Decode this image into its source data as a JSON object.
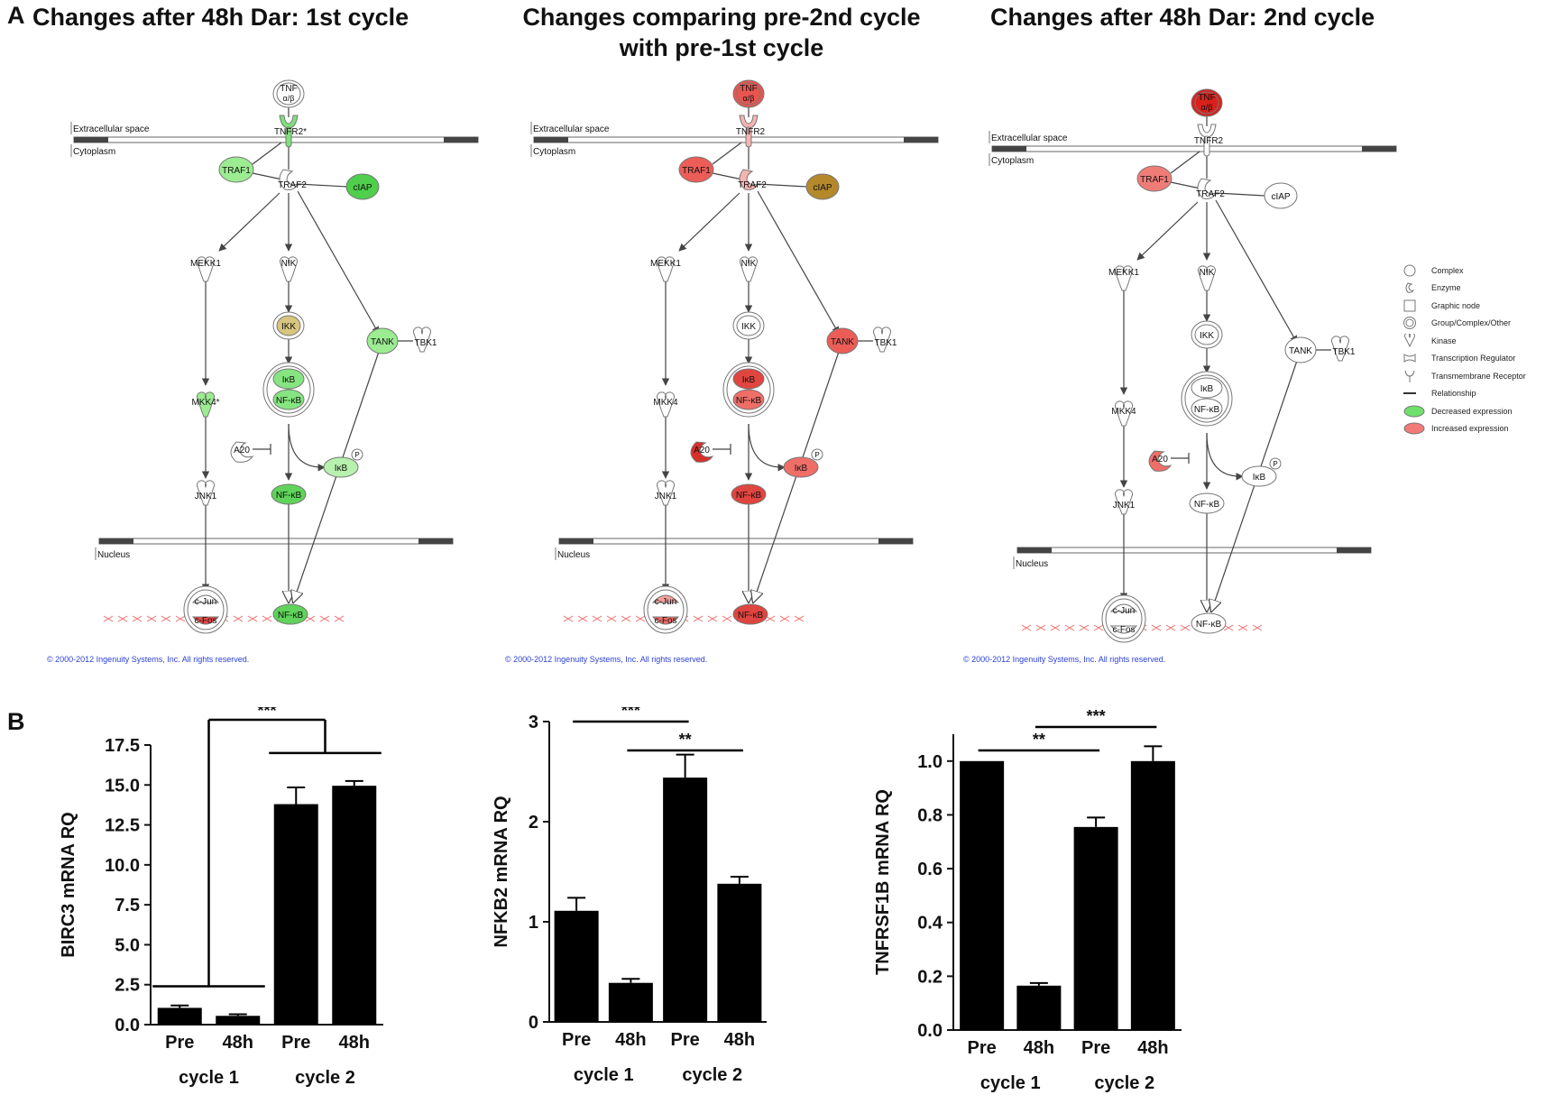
{
  "panel_a": {
    "letter": "A",
    "legend": [
      {
        "icon": "complex-icon",
        "label": "Complex"
      },
      {
        "icon": "enzyme-icon",
        "label": "Enzyme"
      },
      {
        "icon": "graphic-node-icon",
        "label": "Graphic node"
      },
      {
        "icon": "group-complex-icon",
        "label": "Group/Complex/Other"
      },
      {
        "icon": "kinase-icon",
        "label": "Kinase"
      },
      {
        "icon": "transcription-regulator-icon",
        "label": "Transcription Regulator"
      },
      {
        "icon": "transmembrane-receptor-icon",
        "label": "Transmembrane Receptor"
      },
      {
        "icon": "relationship-icon",
        "label": "Relationship"
      },
      {
        "icon": "decreased-expression-icon",
        "label": "Decreased expression",
        "color": "#6fe06a"
      },
      {
        "icon": "increased-expression-icon",
        "label": "Increased expression",
        "color": "#f27a78"
      }
    ],
    "diagrams": [
      {
        "title": "Changes after 48h Dar: 1st cycle",
        "copyright": "© 2000-2012 Ingenuity Systems, Inc. All rights reserved.",
        "compartments": {
          "extracellular": "Extracellular space",
          "cytoplasm": "Cytoplasm",
          "nucleus": "Nucleus"
        },
        "nodes": {
          "TNF": {
            "label1": "TNF",
            "label2": "α/β",
            "color": "#ffffff"
          },
          "TNFR2": {
            "label": "TNFR2*",
            "color": "#7de37a"
          },
          "TRAF1": {
            "label": "TRAF1",
            "color": "#9cec92"
          },
          "TRAF2": {
            "label": "TRAF2",
            "color": "#ffffff"
          },
          "cIAP": {
            "label": "cIAP",
            "color": "#4fcf4c"
          },
          "MEKK1": {
            "label": "MEKK1",
            "color": "#ffffff"
          },
          "NIK": {
            "label": "NIK",
            "color": "#ffffff"
          },
          "IKK": {
            "label": "IKK",
            "color": "#d8c57e"
          },
          "TANK": {
            "label": "TANK",
            "color": "#9cec92"
          },
          "TBK1": {
            "label": "TBK1",
            "color": "#ffffff"
          },
          "MKK4": {
            "label": "MKK4*",
            "color": "#9cec92"
          },
          "IkB_complex": {
            "label": "IκB",
            "color": "#86e580"
          },
          "NFkB_complex": {
            "label": "NF-κB",
            "color": "#86e580"
          },
          "A20": {
            "label": "A20",
            "color": "#ffffff"
          },
          "IkB_p": {
            "label": "IκB",
            "color": "#b6f1ad"
          },
          "P": {
            "label": "P"
          },
          "JNK1": {
            "label": "JNK1",
            "color": "#ffffff"
          },
          "NFkB": {
            "label": "NF-κB",
            "color": "#5fd35a"
          },
          "cJun": {
            "label": "c-Jun",
            "color": "#ffffff"
          },
          "cFos": {
            "label": "c-Fos",
            "color": "#e84a46"
          },
          "NFkB_nuc": {
            "label": "NF-κB",
            "color": "#5fd35a"
          }
        }
      },
      {
        "title": "Changes comparing pre-2nd cycle with pre-1st cycle",
        "title_line1": "Changes comparing pre-2nd cycle",
        "title_line2": "with pre-1st cycle",
        "copyright": "© 2000-2012 Ingenuity Systems, Inc. All rights reserved.",
        "compartments": {
          "extracellular": "Extracellular space",
          "cytoplasm": "Cytoplasm",
          "nucleus": "Nucleus"
        },
        "nodes": {
          "TNF": {
            "label1": "TNF",
            "label2": "α/β",
            "color": "#e8554f"
          },
          "TNFR2": {
            "label": "TNFR2",
            "color": "#f6b5b0"
          },
          "TRAF1": {
            "label": "TRAF1",
            "color": "#ec5d57"
          },
          "TRAF2": {
            "label": "TRAF2",
            "color": "#f6b5b0"
          },
          "cIAP": {
            "label": "cIAP",
            "color": "#b5882c"
          },
          "MEKK1": {
            "label": "MEKK1",
            "color": "#ffffff"
          },
          "NIK": {
            "label": "NIK",
            "color": "#ffffff"
          },
          "IKK": {
            "label": "IKK",
            "color": "#ffffff"
          },
          "TANK": {
            "label": "TANK",
            "color": "#ec5d57"
          },
          "TBK1": {
            "label": "TBK1",
            "color": "#ffffff"
          },
          "MKK4": {
            "label": "MKK4",
            "color": "#ffffff"
          },
          "IkB_complex": {
            "label": "IκB",
            "color": "#e0453f"
          },
          "NFkB_complex": {
            "label": "NF-κB",
            "color": "#ef6e68"
          },
          "A20": {
            "label": "A20",
            "color": "#d92f2a"
          },
          "IkB_p": {
            "label": "IκB",
            "color": "#ef6e68"
          },
          "P": {
            "label": "P"
          },
          "JNK1": {
            "label": "JNK1",
            "color": "#ffffff"
          },
          "NFkB": {
            "label": "NF-κB",
            "color": "#e0453f"
          },
          "cJun": {
            "label": "c-Jun",
            "color": "#f3a09b"
          },
          "cFos": {
            "label": "c-Fos",
            "color": "#f06e69"
          },
          "NFkB_nuc": {
            "label": "NF-κB",
            "color": "#e0453f"
          }
        }
      },
      {
        "title": "Changes after 48h Dar: 2nd cycle",
        "copyright": "© 2000-2012 Ingenuity Systems, Inc. All rights reserved.",
        "compartments": {
          "extracellular": "Extracellular space",
          "cytoplasm": "Cytoplasm",
          "nucleus": "Nucleus"
        },
        "nodes": {
          "TNF": {
            "label1": "TNF",
            "label2": "α/β",
            "color": "#d8211c"
          },
          "TNFR2": {
            "label": "TNFR2",
            "color": "#ffffff"
          },
          "TRAF1": {
            "label": "TRAF1",
            "color": "#f07c77"
          },
          "TRAF2": {
            "label": "TRAF2",
            "color": "#ffffff"
          },
          "cIAP": {
            "label": "cIAP",
            "color": "#ffffff"
          },
          "MEKK1": {
            "label": "MEKK1",
            "color": "#ffffff"
          },
          "NIK": {
            "label": "NIK",
            "color": "#ffffff"
          },
          "IKK": {
            "label": "IKK",
            "color": "#ffffff"
          },
          "TANK": {
            "label": "TANK",
            "color": "#ffffff"
          },
          "TBK1": {
            "label": "TBK1",
            "color": "#ffffff"
          },
          "MKK4": {
            "label": "MKK4",
            "color": "#ffffff"
          },
          "IkB_complex": {
            "label": "IκB",
            "color": "#ffffff"
          },
          "NFkB_complex": {
            "label": "NF-κB",
            "color": "#ffffff"
          },
          "A20": {
            "label": "A20",
            "color": "#ef6e68"
          },
          "IkB_p": {
            "label": "IκB",
            "color": "#ffffff"
          },
          "P": {
            "label": "P"
          },
          "JNK1": {
            "label": "JNK1",
            "color": "#ffffff"
          },
          "NFkB": {
            "label": "NF-κB",
            "color": "#ffffff"
          },
          "cJun": {
            "label": "c-Jun",
            "color": "#ffffff"
          },
          "cFos": {
            "label": "c-Fos",
            "color": "#ffffff"
          },
          "NFkB_nuc": {
            "label": "NF-κB",
            "color": "#ffffff"
          }
        }
      }
    ]
  },
  "panel_b": {
    "letter": "B",
    "cycle_labels": [
      "cycle 1",
      "cycle 2"
    ]
  },
  "chart_data": [
    {
      "type": "bar",
      "title": "",
      "xlabel": "",
      "ylabel": "BIRC3 mRNA RQ",
      "categories": [
        "Pre",
        "48h",
        "Pre",
        "48h"
      ],
      "groups": [
        "cycle 1",
        "cycle 2"
      ],
      "values": [
        1.05,
        0.55,
        13.8,
        14.95
      ],
      "errors": [
        0.15,
        0.1,
        1.05,
        0.3
      ],
      "ylim": [
        0,
        17.5
      ],
      "yticks": [
        0.0,
        2.5,
        5.0,
        7.5,
        10.0,
        12.5,
        15.0,
        17.5
      ],
      "ytick_labels": [
        "0.0",
        "2.5",
        "5.0",
        "7.5",
        "10.0",
        "12.5",
        "15.0",
        "17.5"
      ],
      "significance": [
        {
          "label": "***",
          "between": "cycle 1 vs cycle 2"
        }
      ]
    },
    {
      "type": "bar",
      "title": "",
      "xlabel": "",
      "ylabel": "NFKB2 mRNA RQ",
      "categories": [
        "Pre",
        "48h",
        "Pre",
        "48h"
      ],
      "groups": [
        "cycle 1",
        "cycle 2"
      ],
      "values": [
        1.11,
        0.39,
        2.44,
        1.38
      ],
      "errors": [
        0.13,
        0.04,
        0.23,
        0.07
      ],
      "ylim": [
        0,
        3
      ],
      "yticks": [
        0,
        1,
        2,
        3
      ],
      "ytick_labels": [
        "0",
        "1",
        "2",
        "3"
      ],
      "significance": [
        {
          "label": "***",
          "from": 0,
          "to": 2
        },
        {
          "label": "**",
          "from": 1,
          "to": 3
        }
      ]
    },
    {
      "type": "bar",
      "title": "",
      "xlabel": "",
      "ylabel": "TNFRSF1B mRNA  RQ",
      "categories": [
        "Pre",
        "48h",
        "Pre",
        "48h"
      ],
      "groups": [
        "cycle 1",
        "cycle 2"
      ],
      "values": [
        1.0,
        0.165,
        0.755,
        1.0
      ],
      "errors": [
        0.0,
        0.01,
        0.035,
        0.055
      ],
      "ylim": [
        0,
        1.1
      ],
      "yticks": [
        0.0,
        0.2,
        0.4,
        0.6,
        0.8,
        1.0
      ],
      "ytick_labels": [
        "0.0",
        "0.2",
        "0.4",
        "0.6",
        "0.8",
        "1.0"
      ],
      "significance": [
        {
          "label": "**",
          "from": 0,
          "to": 2
        },
        {
          "label": "***",
          "from": 1,
          "to": 3
        }
      ]
    }
  ]
}
